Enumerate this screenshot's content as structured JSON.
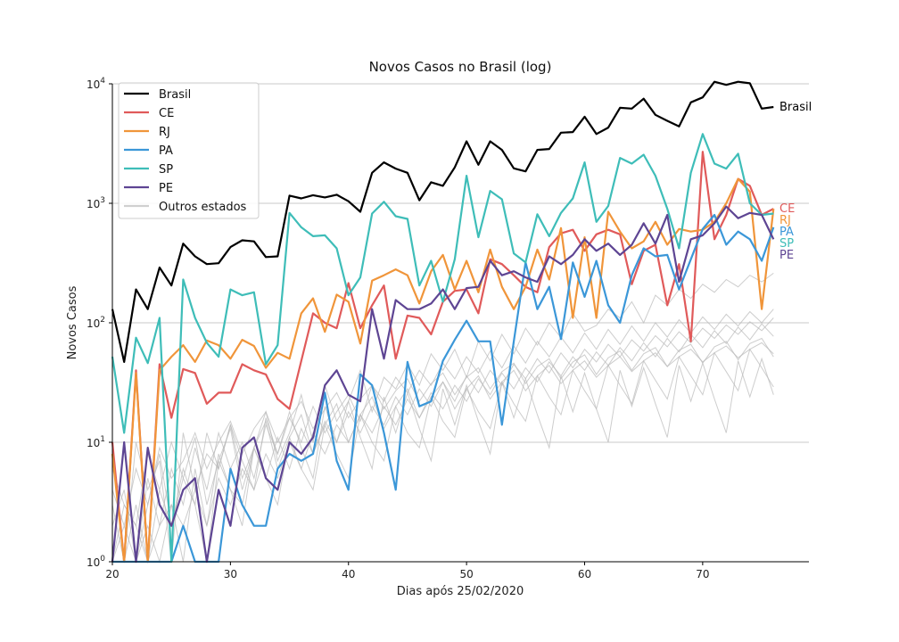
{
  "chart_data": {
    "type": "line",
    "title": "Novos Casos no Brasil (log)",
    "xlabel": "Dias após 25/02/2020",
    "ylabel": "Novos Casos",
    "yscale": "log",
    "xlim": [
      20,
      79
    ],
    "ylim": [
      1,
      10000
    ],
    "x_ticks": [
      20,
      30,
      40,
      50,
      60,
      70
    ],
    "y_ticks": [
      {
        "value": 1,
        "base": "10",
        "exp": "0"
      },
      {
        "value": 10,
        "base": "10",
        "exp": "1"
      },
      {
        "value": 100,
        "base": "10",
        "exp": "2"
      },
      {
        "value": 1000,
        "base": "10",
        "exp": "3"
      },
      {
        "value": 10000,
        "base": "10",
        "exp": "4"
      }
    ],
    "grid": "horizontal",
    "legend_position": "top-left",
    "x_start": 20,
    "series": [
      {
        "name": "Brasil",
        "color": "#000000",
        "end_label": "Brasil",
        "values": [
          130,
          47,
          190,
          130,
          290,
          205,
          460,
          360,
          310,
          315,
          430,
          490,
          480,
          355,
          360,
          1160,
          1100,
          1170,
          1120,
          1180,
          1040,
          850,
          1800,
          2200,
          1950,
          1800,
          1060,
          1500,
          1400,
          2000,
          3300,
          2100,
          3300,
          2800,
          1960,
          1850,
          2800,
          2850,
          3900,
          3950,
          5300,
          3800,
          4300,
          6300,
          6200,
          7500,
          5500,
          4900,
          4400,
          7000,
          7700,
          10400,
          9800,
          10400,
          10100,
          6200,
          6400
        ]
      },
      {
        "name": "CE",
        "color": "#e05a5a",
        "end_label": "CE",
        "values": [
          10,
          1,
          40,
          1,
          45,
          16,
          41,
          38,
          21,
          26,
          26,
          45,
          40,
          37,
          23,
          19,
          48,
          120,
          100,
          90,
          215,
          90,
          140,
          205,
          50,
          115,
          110,
          80,
          150,
          185,
          190,
          120,
          340,
          310,
          250,
          200,
          180,
          430,
          560,
          600,
          400,
          550,
          600,
          550,
          210,
          400,
          450,
          140,
          310,
          70,
          2700,
          500,
          800,
          1600,
          1400,
          800,
          900
        ]
      },
      {
        "name": "RJ",
        "color": "#f0953a",
        "end_label": "RJ",
        "values": [
          8,
          1,
          38,
          1,
          40,
          52,
          65,
          47,
          71,
          65,
          50,
          72,
          64,
          42,
          56,
          50,
          120,
          160,
          84,
          172,
          150,
          67,
          225,
          250,
          280,
          250,
          145,
          270,
          370,
          190,
          330,
          180,
          410,
          200,
          130,
          200,
          410,
          230,
          620,
          110,
          520,
          110,
          850,
          580,
          420,
          480,
          700,
          450,
          610,
          580,
          600,
          700,
          1000,
          1600,
          1250,
          130,
          900
        ]
      },
      {
        "name": "PA",
        "color": "#3b97d8",
        "end_label": "PA",
        "values": [
          1,
          1,
          1,
          1,
          1,
          1,
          2,
          1,
          1,
          1,
          6,
          3,
          2,
          2,
          6,
          8,
          7,
          8,
          26,
          7,
          4,
          37,
          30,
          12,
          4,
          47,
          20,
          22,
          48,
          72,
          104,
          70,
          70,
          14,
          70,
          320,
          130,
          200,
          73,
          320,
          165,
          330,
          140,
          100,
          250,
          420,
          360,
          370,
          190,
          340,
          610,
          800,
          450,
          580,
          500,
          330,
          630
        ]
      },
      {
        "name": "SP",
        "color": "#3ebdb8",
        "end_label": "SP",
        "values": [
          52,
          12,
          75,
          46,
          110,
          1,
          230,
          110,
          68,
          52,
          190,
          170,
          180,
          45,
          65,
          830,
          630,
          530,
          540,
          420,
          170,
          240,
          820,
          1030,
          780,
          740,
          205,
          330,
          150,
          340,
          1700,
          520,
          1270,
          1080,
          380,
          320,
          810,
          530,
          830,
          1100,
          2200,
          700,
          950,
          2400,
          2150,
          2550,
          1700,
          900,
          420,
          1800,
          3800,
          2150,
          1950,
          2600,
          1000,
          800,
          820
        ]
      },
      {
        "name": "PE",
        "color": "#5e4593",
        "end_label": "PE",
        "values": [
          1,
          10,
          1,
          9,
          3,
          2,
          4,
          5,
          1,
          4,
          2,
          9,
          11,
          5,
          4,
          10,
          8,
          11,
          30,
          40,
          25,
          22,
          130,
          50,
          155,
          130,
          130,
          145,
          190,
          130,
          195,
          200,
          330,
          250,
          270,
          240,
          220,
          360,
          310,
          370,
          500,
          400,
          460,
          370,
          450,
          680,
          460,
          800,
          220,
          500,
          540,
          680,
          940,
          750,
          830,
          800,
          500
        ]
      }
    ],
    "other_states": {
      "name": "Outros estados",
      "color": "#b8b8b8",
      "series": [
        [
          3,
          1,
          10,
          4,
          7,
          1,
          12,
          4,
          8,
          6,
          14,
          5,
          9,
          18,
          7,
          12,
          25,
          10,
          30,
          15,
          22,
          40,
          18,
          35,
          28,
          45,
          30,
          55,
          40,
          60,
          35,
          70,
          48,
          80,
          55,
          90,
          65,
          100,
          75,
          120,
          85,
          95,
          130,
          110,
          150,
          100,
          170,
          140,
          190,
          160,
          210,
          180,
          230,
          200,
          250,
          220,
          260
        ],
        [
          1,
          2,
          1,
          5,
          2,
          3,
          1,
          6,
          2,
          8,
          4,
          3,
          9,
          5,
          11,
          6,
          13,
          8,
          15,
          10,
          18,
          12,
          20,
          14,
          24,
          17,
          28,
          20,
          32,
          22,
          36,
          26,
          40,
          30,
          45,
          34,
          50,
          38,
          56,
          42,
          60,
          47,
          66,
          52,
          72,
          58,
          78,
          63,
          84,
          68,
          90,
          74,
          96,
          80,
          102,
          86,
          110
        ],
        [
          1,
          1,
          3,
          1,
          2,
          6,
          3,
          9,
          4,
          12,
          6,
          10,
          5,
          14,
          8,
          16,
          10,
          20,
          12,
          18,
          25,
          15,
          30,
          22,
          35,
          26,
          40,
          30,
          46,
          34,
          52,
          38,
          58,
          42,
          64,
          46,
          70,
          52,
          76,
          56,
          82,
          60,
          88,
          66,
          94,
          70,
          100,
          76,
          106,
          82,
          112,
          88,
          118,
          94,
          124,
          100,
          130
        ],
        [
          2,
          4,
          1,
          3,
          8,
          2,
          5,
          11,
          3,
          7,
          13,
          4,
          9,
          15,
          6,
          11,
          17,
          8,
          14,
          21,
          10,
          17,
          24,
          13,
          20,
          28,
          16,
          24,
          32,
          19,
          28,
          36,
          23,
          32,
          40,
          27,
          36,
          44,
          31,
          40,
          48,
          35,
          44,
          52,
          39,
          48,
          56,
          43,
          52,
          60,
          47,
          56,
          64,
          51,
          60,
          68,
          55
        ],
        [
          1,
          1,
          1,
          2,
          1,
          3,
          2,
          4,
          2,
          5,
          3,
          6,
          4,
          8,
          5,
          10,
          6,
          12,
          8,
          14,
          10,
          17,
          12,
          20,
          14,
          23,
          16,
          26,
          19,
          30,
          22,
          34,
          25,
          38,
          28,
          42,
          32,
          47,
          36,
          52,
          40,
          57,
          44,
          62,
          48,
          68,
          52,
          74,
          57,
          80,
          62,
          86,
          67,
          92,
          72,
          98,
          77
        ],
        [
          4,
          2,
          6,
          3,
          9,
          5,
          7,
          12,
          6,
          10,
          15,
          8,
          13,
          18,
          10,
          16,
          22,
          13,
          19,
          26,
          16,
          23,
          30,
          19,
          27,
          34,
          22,
          31,
          38,
          25,
          35,
          42,
          28,
          39,
          46,
          31,
          43,
          50,
          34,
          47,
          54,
          37,
          51,
          58,
          40,
          55,
          62,
          43,
          59,
          66,
          46,
          63,
          70,
          49,
          67,
          74,
          52
        ],
        [
          1,
          3,
          2,
          1,
          4,
          2,
          6,
          3,
          1,
          7,
          4,
          2,
          9,
          5,
          3,
          11,
          6,
          4,
          14,
          8,
          5,
          17,
          10,
          7,
          20,
          12,
          9,
          24,
          15,
          11,
          28,
          18,
          13,
          32,
          21,
          15,
          36,
          24,
          17,
          40,
          27,
          19,
          44,
          30,
          21,
          48,
          33,
          23,
          52,
          36,
          25,
          56,
          39,
          27,
          60,
          42,
          29
        ],
        [
          6,
          3,
          2,
          8,
          4,
          10,
          5,
          3,
          12,
          6,
          14,
          7,
          4,
          16,
          8,
          18,
          9,
          5,
          20,
          10,
          22,
          11,
          6,
          24,
          12,
          26,
          13,
          7,
          28,
          14,
          30,
          15,
          8,
          32,
          16,
          34,
          17,
          9,
          36,
          18,
          38,
          19,
          10,
          40,
          20,
          42,
          21,
          11,
          44,
          22,
          46,
          23,
          12,
          48,
          24,
          50,
          25
        ]
      ]
    }
  }
}
